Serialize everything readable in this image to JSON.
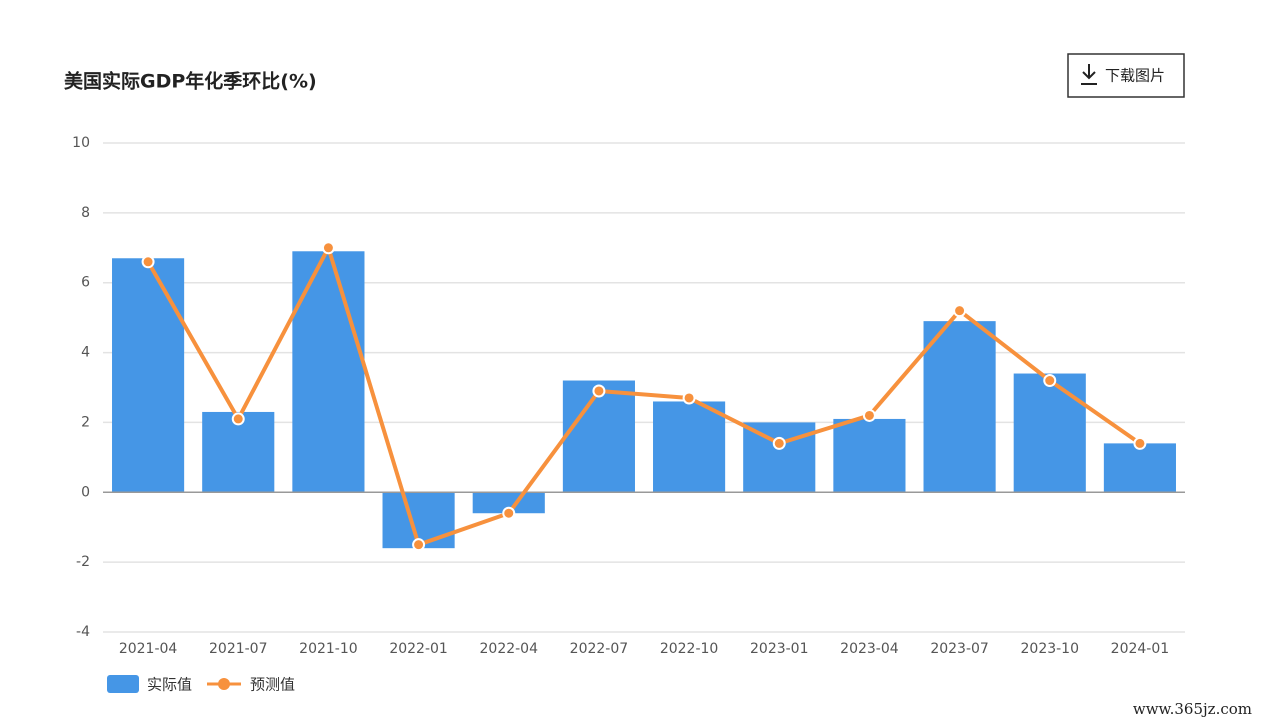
{
  "chart_data": {
    "type": "bar",
    "title": "美国实际GDP年化季环比(%)",
    "button": "下载图片",
    "watermark": "www.365jz.com",
    "categories": [
      "2021-04",
      "2021-07",
      "2021-10",
      "2022-01",
      "2022-04",
      "2022-07",
      "2022-10",
      "2023-01",
      "2023-04",
      "2023-07",
      "2023-10",
      "2024-01"
    ],
    "series": [
      {
        "name": "实际值",
        "type": "bar",
        "color": "#4596e6",
        "values": [
          6.7,
          2.3,
          6.9,
          -1.6,
          -0.6,
          3.2,
          2.6,
          2.0,
          2.1,
          4.9,
          3.4,
          1.4
        ]
      },
      {
        "name": "预测值",
        "type": "line",
        "color": "#f7913d",
        "values": [
          6.6,
          2.1,
          7.0,
          -1.5,
          -0.6,
          2.9,
          2.7,
          1.4,
          2.2,
          5.2,
          3.2,
          1.4
        ]
      }
    ],
    "ylim": [
      -4,
      10
    ],
    "yticks": [
      -4,
      -2,
      0,
      2,
      4,
      6,
      8,
      10
    ],
    "grid": true,
    "legend": "bottom-left"
  }
}
